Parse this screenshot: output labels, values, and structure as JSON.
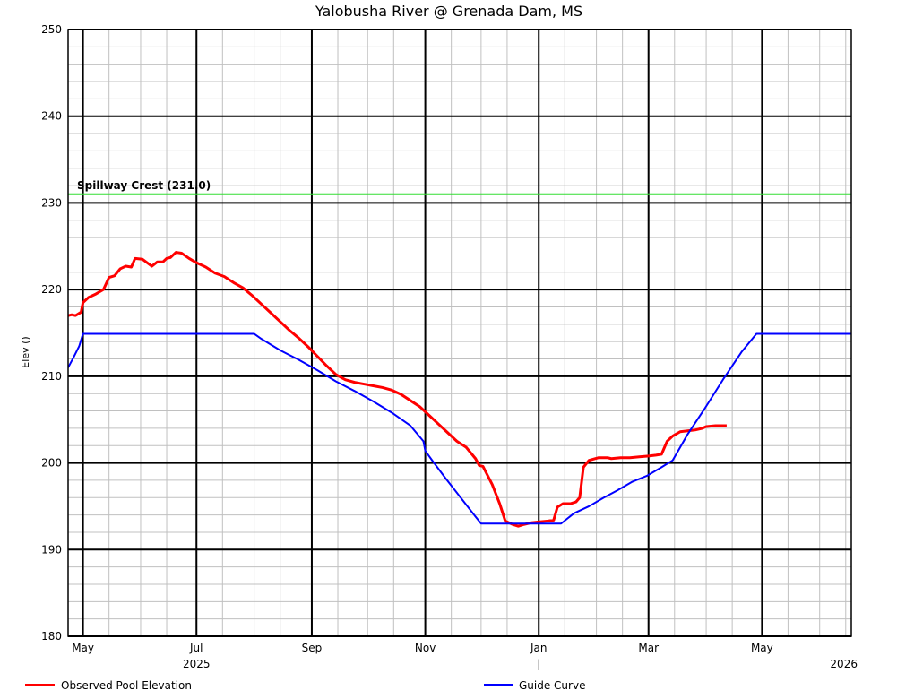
{
  "chart_data": {
    "type": "line",
    "title": "Yalobusha River @ Grenada Dam, MS",
    "ylabel": "Elev ()",
    "xlabel": "",
    "ylim": [
      180,
      250
    ],
    "xlim": [
      "2025-04-23",
      "2026-06-18"
    ],
    "y_ticks": [
      180,
      190,
      200,
      210,
      220,
      230,
      240,
      250
    ],
    "x_major_ticks": [
      "2025-05-01",
      "2025-07-01",
      "2025-09-01",
      "2025-11-01",
      "2026-01-01",
      "2026-03-01",
      "2026-05-01"
    ],
    "x_tick_labels": [
      "May",
      "Jul",
      "Sep",
      "Nov",
      "Jan",
      "Mar",
      "May"
    ],
    "year_labels": [
      {
        "text": "2025",
        "date": "2025-07-01"
      },
      {
        "text": "|",
        "date": "2026-01-01"
      },
      {
        "text": "2026",
        "date": "2026-06-14"
      }
    ],
    "grid": true,
    "legend_position": "bottom",
    "reference_lines": [
      {
        "label": "Spillway Crest (231.0)",
        "value": 231.0,
        "color": "#33dd33"
      }
    ],
    "series": [
      {
        "name": "Observed Pool Elevation",
        "color": "#ff0000",
        "points": [
          [
            "2025-04-23",
            217.0
          ],
          [
            "2025-04-25",
            217.1
          ],
          [
            "2025-04-27",
            217.0
          ],
          [
            "2025-04-30",
            217.4
          ],
          [
            "2025-05-01",
            218.5
          ],
          [
            "2025-05-04",
            219.1
          ],
          [
            "2025-05-08",
            219.5
          ],
          [
            "2025-05-12",
            220.0
          ],
          [
            "2025-05-15",
            221.4
          ],
          [
            "2025-05-18",
            221.6
          ],
          [
            "2025-05-21",
            222.4
          ],
          [
            "2025-05-24",
            222.7
          ],
          [
            "2025-05-27",
            222.6
          ],
          [
            "2025-05-29",
            223.6
          ],
          [
            "2025-06-02",
            223.5
          ],
          [
            "2025-06-07",
            222.7
          ],
          [
            "2025-06-10",
            223.2
          ],
          [
            "2025-06-13",
            223.2
          ],
          [
            "2025-06-15",
            223.6
          ],
          [
            "2025-06-17",
            223.7
          ],
          [
            "2025-06-20",
            224.3
          ],
          [
            "2025-06-23",
            224.2
          ],
          [
            "2025-06-27",
            223.6
          ],
          [
            "2025-07-01",
            223.1
          ],
          [
            "2025-07-06",
            222.6
          ],
          [
            "2025-07-11",
            221.9
          ],
          [
            "2025-07-16",
            221.5
          ],
          [
            "2025-07-21",
            220.8
          ],
          [
            "2025-07-26",
            220.2
          ],
          [
            "2025-07-31",
            219.3
          ],
          [
            "2025-08-05",
            218.3
          ],
          [
            "2025-08-10",
            217.3
          ],
          [
            "2025-08-15",
            216.3
          ],
          [
            "2025-08-20",
            215.3
          ],
          [
            "2025-08-25",
            214.4
          ],
          [
            "2025-08-30",
            213.4
          ],
          [
            "2025-09-04",
            212.3
          ],
          [
            "2025-09-09",
            211.2
          ],
          [
            "2025-09-14",
            210.2
          ],
          [
            "2025-09-19",
            209.6
          ],
          [
            "2025-09-24",
            209.3
          ],
          [
            "2025-09-29",
            209.1
          ],
          [
            "2025-10-04",
            208.9
          ],
          [
            "2025-10-09",
            208.7
          ],
          [
            "2025-10-14",
            208.4
          ],
          [
            "2025-10-19",
            207.9
          ],
          [
            "2025-10-24",
            207.2
          ],
          [
            "2025-10-29",
            206.5
          ],
          [
            "2025-11-03",
            205.5
          ],
          [
            "2025-11-08",
            204.5
          ],
          [
            "2025-11-13",
            203.5
          ],
          [
            "2025-11-18",
            202.5
          ],
          [
            "2025-11-23",
            201.8
          ],
          [
            "2025-11-28",
            200.5
          ],
          [
            "2025-11-30",
            199.7
          ],
          [
            "2025-12-02",
            199.6
          ],
          [
            "2025-12-07",
            197.5
          ],
          [
            "2025-12-11",
            195.3
          ],
          [
            "2025-12-14",
            193.3
          ],
          [
            "2025-12-18",
            192.9
          ],
          [
            "2025-12-21",
            192.7
          ],
          [
            "2025-12-24",
            192.9
          ],
          [
            "2025-12-28",
            193.1
          ],
          [
            "2026-01-01",
            193.2
          ],
          [
            "2026-01-06",
            193.3
          ],
          [
            "2026-01-09",
            193.4
          ],
          [
            "2026-01-11",
            194.9
          ],
          [
            "2026-01-14",
            195.3
          ],
          [
            "2026-01-18",
            195.3
          ],
          [
            "2026-01-21",
            195.5
          ],
          [
            "2026-01-23",
            196.0
          ],
          [
            "2026-01-25",
            199.5
          ],
          [
            "2026-01-28",
            200.3
          ],
          [
            "2026-02-02",
            200.6
          ],
          [
            "2026-02-07",
            200.6
          ],
          [
            "2026-02-09",
            200.5
          ],
          [
            "2026-02-14",
            200.6
          ],
          [
            "2026-02-19",
            200.6
          ],
          [
            "2026-02-24",
            200.7
          ],
          [
            "2026-03-01",
            200.8
          ],
          [
            "2026-03-05",
            200.9
          ],
          [
            "2026-03-08",
            201.0
          ],
          [
            "2026-03-11",
            202.5
          ],
          [
            "2026-03-14",
            203.1
          ],
          [
            "2026-03-18",
            203.6
          ],
          [
            "2026-03-22",
            203.7
          ],
          [
            "2026-03-26",
            203.8
          ],
          [
            "2026-03-30",
            204.0
          ],
          [
            "2026-04-01",
            204.2
          ],
          [
            "2026-04-06",
            204.3
          ],
          [
            "2026-04-12",
            204.3
          ]
        ]
      },
      {
        "name": "Guide Curve",
        "color": "#0000ff",
        "points": [
          [
            "2025-04-23",
            211.0
          ],
          [
            "2025-04-26",
            212.2
          ],
          [
            "2025-04-29",
            213.5
          ],
          [
            "2025-05-01",
            214.9
          ],
          [
            "2025-08-01",
            214.9
          ],
          [
            "2025-08-05",
            214.3
          ],
          [
            "2025-08-15",
            213.0
          ],
          [
            "2025-08-25",
            211.9
          ],
          [
            "2025-09-04",
            210.7
          ],
          [
            "2025-09-14",
            209.4
          ],
          [
            "2025-09-24",
            208.3
          ],
          [
            "2025-10-04",
            207.1
          ],
          [
            "2025-10-14",
            205.8
          ],
          [
            "2025-10-24",
            204.3
          ],
          [
            "2025-10-31",
            202.5
          ],
          [
            "2025-11-01",
            201.4
          ],
          [
            "2025-11-05",
            200.2
          ],
          [
            "2025-11-12",
            198.2
          ],
          [
            "2025-11-20",
            196.0
          ],
          [
            "2025-11-28",
            193.8
          ],
          [
            "2025-12-01",
            193.0
          ],
          [
            "2026-01-13",
            193.0
          ],
          [
            "2026-01-20",
            194.2
          ],
          [
            "2026-01-28",
            195.0
          ],
          [
            "2026-02-05",
            196.0
          ],
          [
            "2026-02-12",
            196.8
          ],
          [
            "2026-02-20",
            197.8
          ],
          [
            "2026-02-28",
            198.5
          ],
          [
            "2026-03-08",
            199.5
          ],
          [
            "2026-03-14",
            200.3
          ],
          [
            "2026-03-22",
            203.3
          ],
          [
            "2026-03-31",
            206.2
          ],
          [
            "2026-04-10",
            209.6
          ],
          [
            "2026-04-20",
            212.8
          ],
          [
            "2026-04-28",
            214.9
          ],
          [
            "2026-06-18",
            214.9
          ]
        ]
      }
    ]
  }
}
